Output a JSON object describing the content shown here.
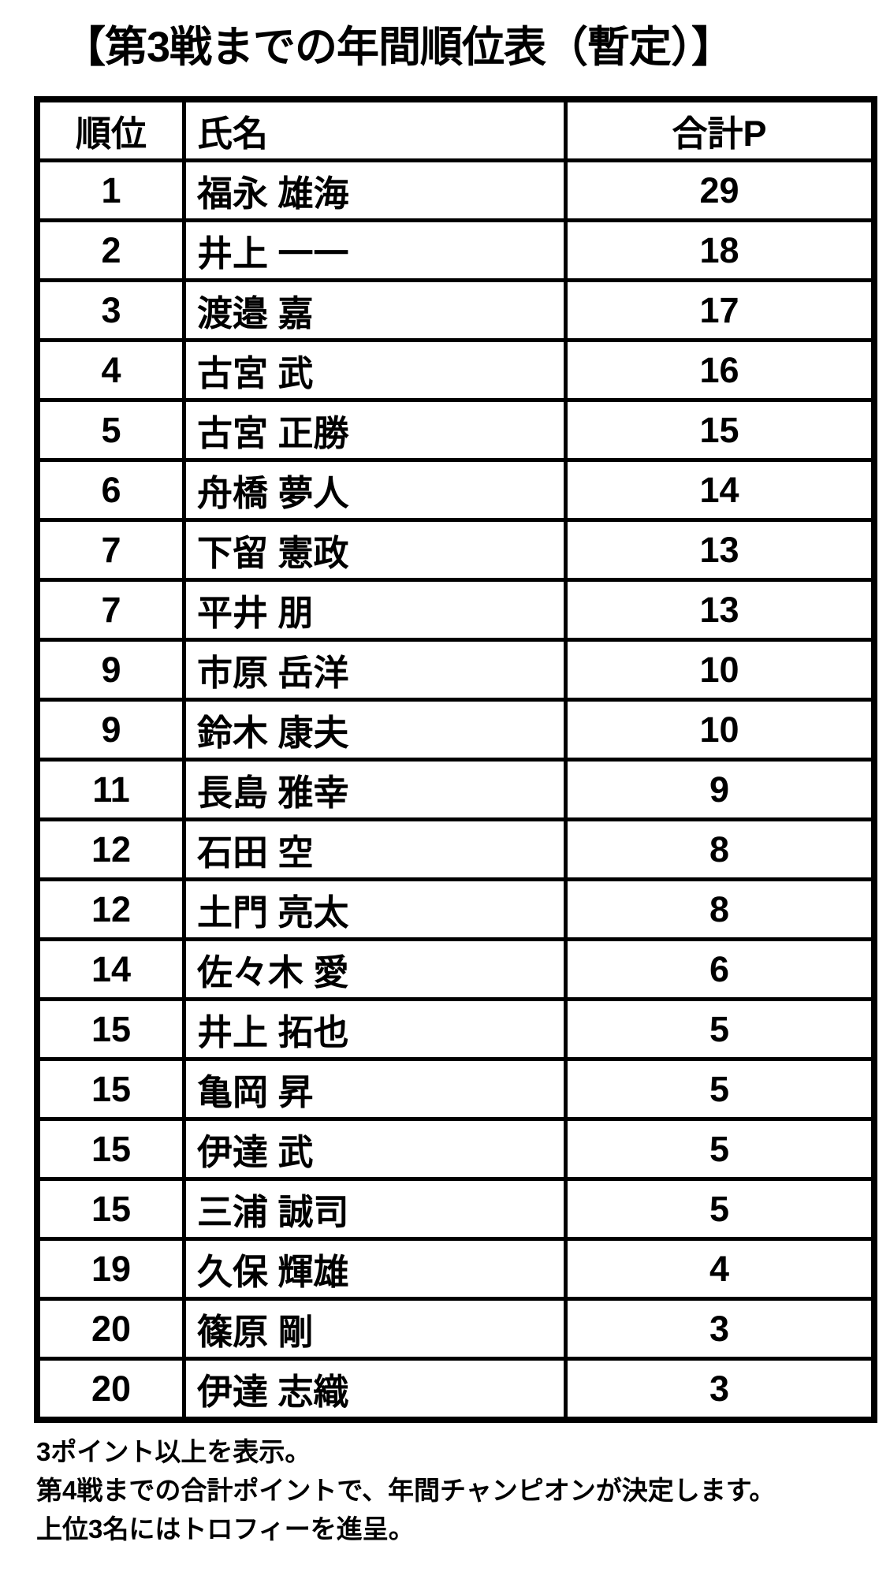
{
  "title": "【第3戦までの年間順位表（暫定）】",
  "table": {
    "headers": {
      "rank": "順位",
      "name": "氏名",
      "points": "合計P"
    },
    "rows": [
      {
        "rank": "1",
        "name": "福永 雄海",
        "points": "29"
      },
      {
        "rank": "2",
        "name": "井上 一一",
        "points": "18"
      },
      {
        "rank": "3",
        "name": "渡邉 嘉",
        "points": "17"
      },
      {
        "rank": "4",
        "name": "古宮 武",
        "points": "16"
      },
      {
        "rank": "5",
        "name": "古宮 正勝",
        "points": "15"
      },
      {
        "rank": "6",
        "name": "舟橋 夢人",
        "points": "14"
      },
      {
        "rank": "7",
        "name": "下留 憲政",
        "points": "13"
      },
      {
        "rank": "7",
        "name": "平井 朋",
        "points": "13"
      },
      {
        "rank": "9",
        "name": "市原 岳洋",
        "points": "10"
      },
      {
        "rank": "9",
        "name": "鈴木 康夫",
        "points": "10"
      },
      {
        "rank": "11",
        "name": "長島 雅幸",
        "points": "9"
      },
      {
        "rank": "12",
        "name": "石田 空",
        "points": "8"
      },
      {
        "rank": "12",
        "name": "土門 亮太",
        "points": "8"
      },
      {
        "rank": "14",
        "name": "佐々木 愛",
        "points": "6"
      },
      {
        "rank": "15",
        "name": "井上 拓也",
        "points": "5"
      },
      {
        "rank": "15",
        "name": "亀岡 昇",
        "points": "5"
      },
      {
        "rank": "15",
        "name": "伊達 武",
        "points": "5"
      },
      {
        "rank": "15",
        "name": "三浦 誠司",
        "points": "5"
      },
      {
        "rank": "19",
        "name": "久保 輝雄",
        "points": "4"
      },
      {
        "rank": "20",
        "name": "篠原 剛",
        "points": "3"
      },
      {
        "rank": "20",
        "name": "伊達 志織",
        "points": "3"
      }
    ]
  },
  "notes": [
    "3ポイント以上を表示。",
    "第4戦までの合計ポイントで、年間チャンピオンが決定します。",
    "上位3名にはトロフィーを進呈。"
  ],
  "colors": {
    "text": "#000000",
    "background": "#ffffff",
    "border": "#000000"
  }
}
